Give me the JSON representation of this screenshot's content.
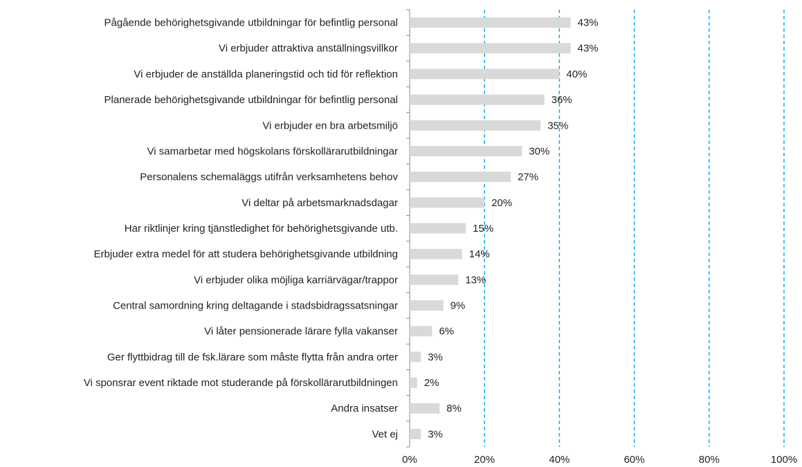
{
  "chart_data": {
    "type": "bar",
    "orientation": "horizontal",
    "categories": [
      "Pågående behörighetsgivande utbildningar för befintlig personal",
      "Vi erbjuder attraktiva anställningsvillkor",
      "Vi erbjuder de anställda  planeringstid och tid för reflektion",
      "Planerade behörighetsgivande utbildningar för befintlig personal",
      "Vi erbjuder en bra arbetsmiljö",
      "Vi samarbetar med högskolans förskollärarutbildningar",
      "Personalens schemaläggs utifrån verksamhetens behov",
      "Vi deltar på arbetsmarknadsdagar",
      "Har  riktlinjer kring tjänstledighet för behörighetsgivande utb.",
      "Erbjuder extra medel för att studera behörighetsgivande utbildning",
      "Vi erbjuder olika möjliga karriärvägar/trappor",
      "Central samordning kring deltagande i stadsbidragssatsningar",
      "Vi låter pensionerade lärare fylla vakanser",
      "Ger flyttbidrag till de fsk.lärare som måste flytta från andra orter",
      "Vi sponsrar event riktade mot studerande på förskollärarutbildningen",
      "Andra insatser",
      "Vet ej"
    ],
    "values": [
      43,
      43,
      40,
      36,
      35,
      30,
      27,
      20,
      15,
      14,
      13,
      9,
      6,
      3,
      2,
      8,
      3
    ],
    "value_labels": [
      "43%",
      "43%",
      "40%",
      "36%",
      "35%",
      "30%",
      "27%",
      "20%",
      "15%",
      "14%",
      "13%",
      "9%",
      "6%",
      "3%",
      "2%",
      "8%",
      "3%"
    ],
    "color": "#d9d9d9",
    "xlim": [
      0,
      100
    ],
    "xticks": [
      {
        "value": 0,
        "label": "0%"
      },
      {
        "value": 20,
        "label": "20%"
      },
      {
        "value": 40,
        "label": "40%"
      },
      {
        "value": 60,
        "label": "60%"
      },
      {
        "value": 80,
        "label": "80%"
      },
      {
        "value": 100,
        "label": "100%"
      }
    ],
    "grid": true,
    "grid_color": "#00b0f0"
  }
}
